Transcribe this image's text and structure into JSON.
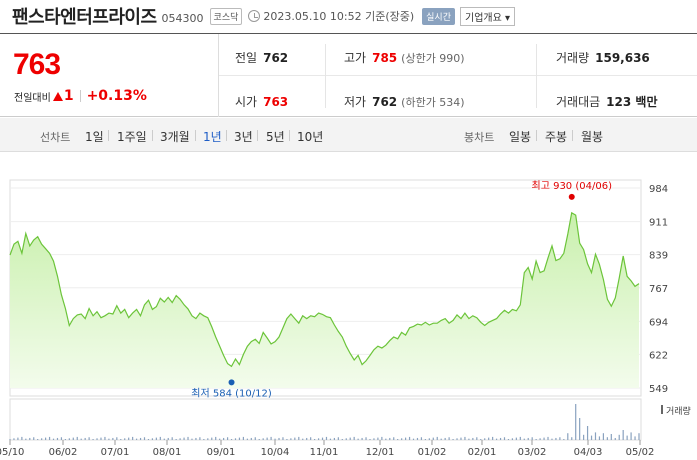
{
  "header": {
    "company": "팬스타엔터프라이즈",
    "code": "054300",
    "market": "코스닥",
    "datetime": "2023.05.10 10:52",
    "basis": "기준(장중)",
    "realtime": "실시간",
    "company_info": "기업개요"
  },
  "summary": {
    "price": "763",
    "change_label": "전일대비",
    "change_value": "1",
    "change_pct": "+0.13%",
    "prev_close_label": "전일",
    "prev_close": "762",
    "open_label": "시가",
    "open": "763",
    "high_label": "고가",
    "high": "785",
    "upper_limit": "(상한가 990)",
    "low_label": "저가",
    "low": "762",
    "lower_limit": "(하한가 534)",
    "volume_label": "거래량",
    "volume": "159,636",
    "amount_label": "거래대금",
    "amount": "123 백만"
  },
  "toolbar": {
    "line_chart_label": "선차트",
    "periods": [
      "1일",
      "1주일",
      "3개월",
      "1년",
      "3년",
      "5년",
      "10년"
    ],
    "active_period": "1년",
    "candle_chart_label": "봉차트",
    "candle_periods": [
      "일봉",
      "주봉",
      "월봉"
    ]
  },
  "colors": {
    "up": "#e00000",
    "line": "#6cc43a",
    "fill": "#d9f5c6",
    "active": "#1e5dc6",
    "max_marker": "#e00000",
    "min_marker": "#1a5fb4"
  },
  "chart_data": {
    "type": "area",
    "y_ticks": [
      "984",
      "911",
      "839",
      "767",
      "694",
      "622",
      "549"
    ],
    "ylim": [
      549,
      984
    ],
    "x_ticks": [
      "05/10",
      "06/02",
      "07/01",
      "08/01",
      "09/01",
      "10/04",
      "11/01",
      "12/01",
      "01/02",
      "02/01",
      "03/02",
      "04/03",
      "05/02"
    ],
    "max_label": "최고 930 (04/06)",
    "min_label": "최저 584 (10/12)",
    "volume_label": "거래량",
    "values": [
      838,
      862,
      868,
      842,
      885,
      858,
      871,
      878,
      862,
      852,
      842,
      825,
      792,
      752,
      722,
      685,
      700,
      708,
      710,
      700,
      722,
      706,
      715,
      702,
      706,
      712,
      710,
      728,
      712,
      720,
      702,
      712,
      720,
      706,
      730,
      740,
      720,
      726,
      744,
      736,
      746,
      735,
      750,
      742,
      730,
      721,
      706,
      700,
      712,
      706,
      702,
      682,
      660,
      640,
      620,
      602,
      596,
      612,
      600,
      622,
      640,
      650,
      655,
      646,
      670,
      658,
      645,
      650,
      660,
      680,
      700,
      710,
      700,
      690,
      706,
      700,
      706,
      704,
      712,
      709,
      704,
      702,
      686,
      672,
      660,
      640,
      624,
      610,
      620,
      600,
      608,
      620,
      632,
      640,
      636,
      642,
      652,
      660,
      656,
      670,
      664,
      680,
      683,
      688,
      686,
      692,
      686,
      690,
      690,
      696,
      700,
      690,
      696,
      708,
      700,
      712,
      700,
      706,
      702,
      692,
      685,
      692,
      696,
      700,
      710,
      718,
      712,
      720,
      717,
      730,
      800,
      811,
      786,
      825,
      800,
      804,
      832,
      858,
      826,
      830,
      842,
      884,
      930,
      925,
      864,
      850,
      819,
      800,
      840,
      818,
      785,
      742,
      727,
      745,
      788,
      836,
      792,
      782,
      770,
      776
    ]
  }
}
